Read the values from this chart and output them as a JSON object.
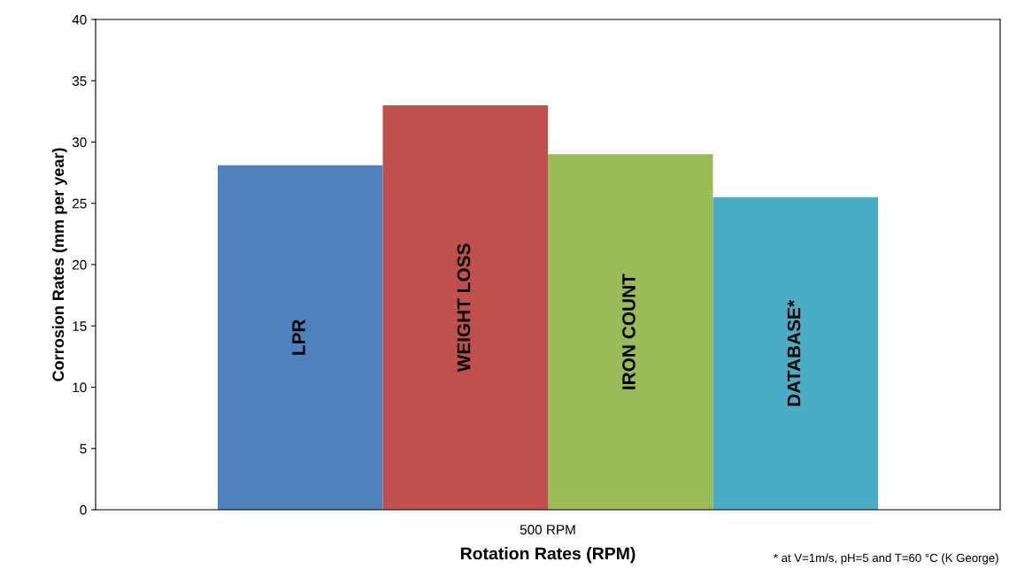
{
  "chart_data": {
    "type": "bar",
    "xlabel": "Rotation Rates (RPM)",
    "ylabel": "Corrosion Rates (mm per year)",
    "categories": [
      "500 RPM"
    ],
    "series": [
      {
        "name": "LPR",
        "color": "#4f81bd",
        "values": [
          28.1
        ]
      },
      {
        "name": "WEIGHT LOSS",
        "color": "#c0504d",
        "values": [
          33.0
        ]
      },
      {
        "name": "IRON COUNT",
        "color": "#9bbb59",
        "values": [
          29.0
        ]
      },
      {
        "name": "DATABASE*",
        "color": "#4bacc6",
        "values": [
          25.5
        ]
      }
    ],
    "ylim": [
      0,
      40
    ],
    "yticks": [
      0,
      5,
      10,
      15,
      20,
      25,
      30,
      35,
      40
    ],
    "grid": false,
    "legend": false,
    "annotations": [
      "* at V=1m/s, pH=5 and T=60 °C (K George)"
    ]
  }
}
